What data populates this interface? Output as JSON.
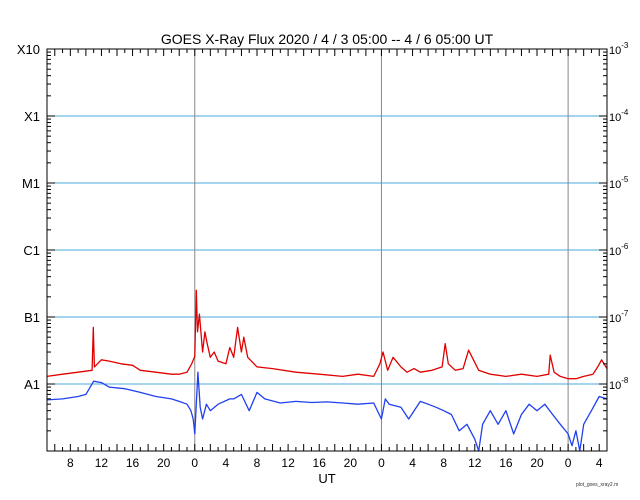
{
  "chart_data": {
    "type": "line",
    "title": "GOES X-Ray Flux   2020 /  4 /  3   05:00 --  4 /  6   05:00   UT",
    "xlabel": "UT",
    "credit": "plot_goes_xray2.m",
    "x_range_hours_since_start": [
      0,
      72
    ],
    "x_tick_labels": [
      "8",
      "12",
      "16",
      "20",
      "0",
      "4",
      "8",
      "12",
      "16",
      "20",
      "0",
      "4",
      "8",
      "12",
      "16",
      "20",
      "0",
      "4"
    ],
    "x_tick_hours_since_start": [
      3,
      7,
      11,
      15,
      19,
      23,
      27,
      31,
      35,
      39,
      43,
      47,
      51,
      55,
      59,
      63,
      67,
      71
    ],
    "day_boundaries_hours_since_start": [
      19,
      43,
      67
    ],
    "y_scale": "log",
    "ylim": [
      1e-09,
      0.001
    ],
    "left_axis_classes": [
      {
        "label": "X10",
        "value": 0.001
      },
      {
        "label": "X1",
        "value": 0.0001
      },
      {
        "label": "M1",
        "value": 1e-05
      },
      {
        "label": "C1",
        "value": 1e-06
      },
      {
        "label": "B1",
        "value": 1e-07
      },
      {
        "label": "A1",
        "value": 1e-08
      }
    ],
    "right_axis_labels": [
      {
        "mantissa": "10",
        "exponent": "-3",
        "value": 0.001
      },
      {
        "mantissa": "10",
        "exponent": "-4",
        "value": 0.0001
      },
      {
        "mantissa": "10",
        "exponent": "-5",
        "value": 1e-05
      },
      {
        "mantissa": "10",
        "exponent": "-6",
        "value": 1e-06
      },
      {
        "mantissa": "10",
        "exponent": "-7",
        "value": 1e-07
      },
      {
        "mantissa": "10",
        "exponent": "-8",
        "value": 1e-08
      }
    ],
    "grid_horizontal_values": [
      0.0001,
      1e-05,
      1e-06,
      1e-07,
      1e-08
    ],
    "colors": {
      "long_channel": "#e00000",
      "short_channel": "#2040f0",
      "grid": "#4aa8e0",
      "day_line": "#888888"
    },
    "series": [
      {
        "channel": "long",
        "color": "#e00000",
        "x_hours": [
          0,
          2,
          4,
          5.8,
          5.95,
          6.1,
          7,
          8,
          9.5,
          11,
          12,
          14,
          16,
          17,
          18,
          18.6,
          19,
          19.2,
          19.35,
          19.6,
          20,
          20.3,
          20.6,
          21,
          21.5,
          22,
          23,
          23.5,
          24,
          24.5,
          25,
          25.3,
          25.8,
          27,
          29,
          32,
          35,
          38,
          40,
          42,
          42.8,
          43.2,
          43.8,
          44.5,
          45.5,
          46.3,
          47.2,
          48,
          49.5,
          50.8,
          51.2,
          51.6,
          52.5,
          53.5,
          54.2,
          55.5,
          57,
          59,
          61,
          63,
          64.5,
          64.7,
          65.2,
          66,
          67,
          68,
          69,
          70.2,
          70.8,
          71.3,
          72
        ],
        "y_flux": [
          1.3e-08,
          1.4e-08,
          1.5e-08,
          1.6e-08,
          7e-08,
          1.8e-08,
          2.3e-08,
          2.2e-08,
          2e-08,
          1.9e-08,
          1.6e-08,
          1.5e-08,
          1.4e-08,
          1.4e-08,
          1.5e-08,
          2e-08,
          2.6e-08,
          2.5e-07,
          6e-08,
          1.1e-07,
          3e-08,
          6e-08,
          4e-08,
          2.5e-08,
          3e-08,
          2.2e-08,
          2e-08,
          3.5e-08,
          2.5e-08,
          7e-08,
          3e-08,
          5e-08,
          2.5e-08,
          1.8e-08,
          1.7e-08,
          1.5e-08,
          1.4e-08,
          1.3e-08,
          1.4e-08,
          1.3e-08,
          2e-08,
          3e-08,
          1.6e-08,
          2.5e-08,
          1.8e-08,
          1.5e-08,
          1.7e-08,
          1.5e-08,
          1.6e-08,
          1.8e-08,
          4e-08,
          2e-08,
          1.6e-08,
          1.7e-08,
          3.2e-08,
          1.6e-08,
          1.4e-08,
          1.3e-08,
          1.4e-08,
          1.3e-08,
          1.4e-08,
          2.7e-08,
          1.5e-08,
          1.3e-08,
          1.2e-08,
          1.2e-08,
          1.3e-08,
          1.4e-08,
          1.8e-08,
          2.3e-08,
          1.7e-08
        ]
      },
      {
        "channel": "short",
        "color": "#2040f0",
        "x_hours": [
          0,
          2,
          4,
          5,
          6,
          7,
          8,
          10,
          12,
          14,
          16,
          17,
          18,
          18.5,
          18.8,
          19,
          19.4,
          19.7,
          20,
          20.5,
          21,
          22,
          23.5,
          24,
          25,
          26,
          27,
          28,
          30,
          32,
          34,
          36,
          38,
          40,
          42,
          43,
          43.5,
          44,
          45.5,
          46.5,
          48,
          49,
          50,
          51,
          52,
          53,
          54,
          55,
          55.5,
          56,
          57,
          58,
          59,
          60,
          61,
          62,
          63,
          64,
          65,
          66,
          67,
          67.5,
          68,
          68.5,
          69,
          70,
          71,
          72
        ],
        "y_flux": [
          5.8e-09,
          6e-09,
          6.5e-09,
          7e-09,
          1.1e-08,
          1.05e-08,
          9e-09,
          8.5e-09,
          7.5e-09,
          6.5e-09,
          6e-09,
          5.5e-09,
          5e-09,
          4e-09,
          3e-09,
          1.8e-09,
          1.5e-08,
          4.5e-09,
          3e-09,
          5e-09,
          4e-09,
          5e-09,
          6e-09,
          6e-09,
          7e-09,
          4e-09,
          7.5e-09,
          6e-09,
          5.2e-09,
          5.5e-09,
          5.3e-09,
          5.4e-09,
          5.2e-09,
          5e-09,
          5.2e-09,
          3e-09,
          6e-09,
          5e-09,
          4.5e-09,
          3e-09,
          5.5e-09,
          5e-09,
          4.5e-09,
          4e-09,
          3.5e-09,
          2e-09,
          2.5e-09,
          1.5e-09,
          9e-10,
          2.5e-09,
          4e-09,
          2.5e-09,
          4e-09,
          1.8e-09,
          3.5e-09,
          5e-09,
          4e-09,
          5e-09,
          3.5e-09,
          2.5e-09,
          1.8e-09,
          1.2e-09,
          2e-09,
          1e-09,
          2.5e-09,
          4e-09,
          6.5e-09,
          6e-09
        ]
      }
    ]
  }
}
